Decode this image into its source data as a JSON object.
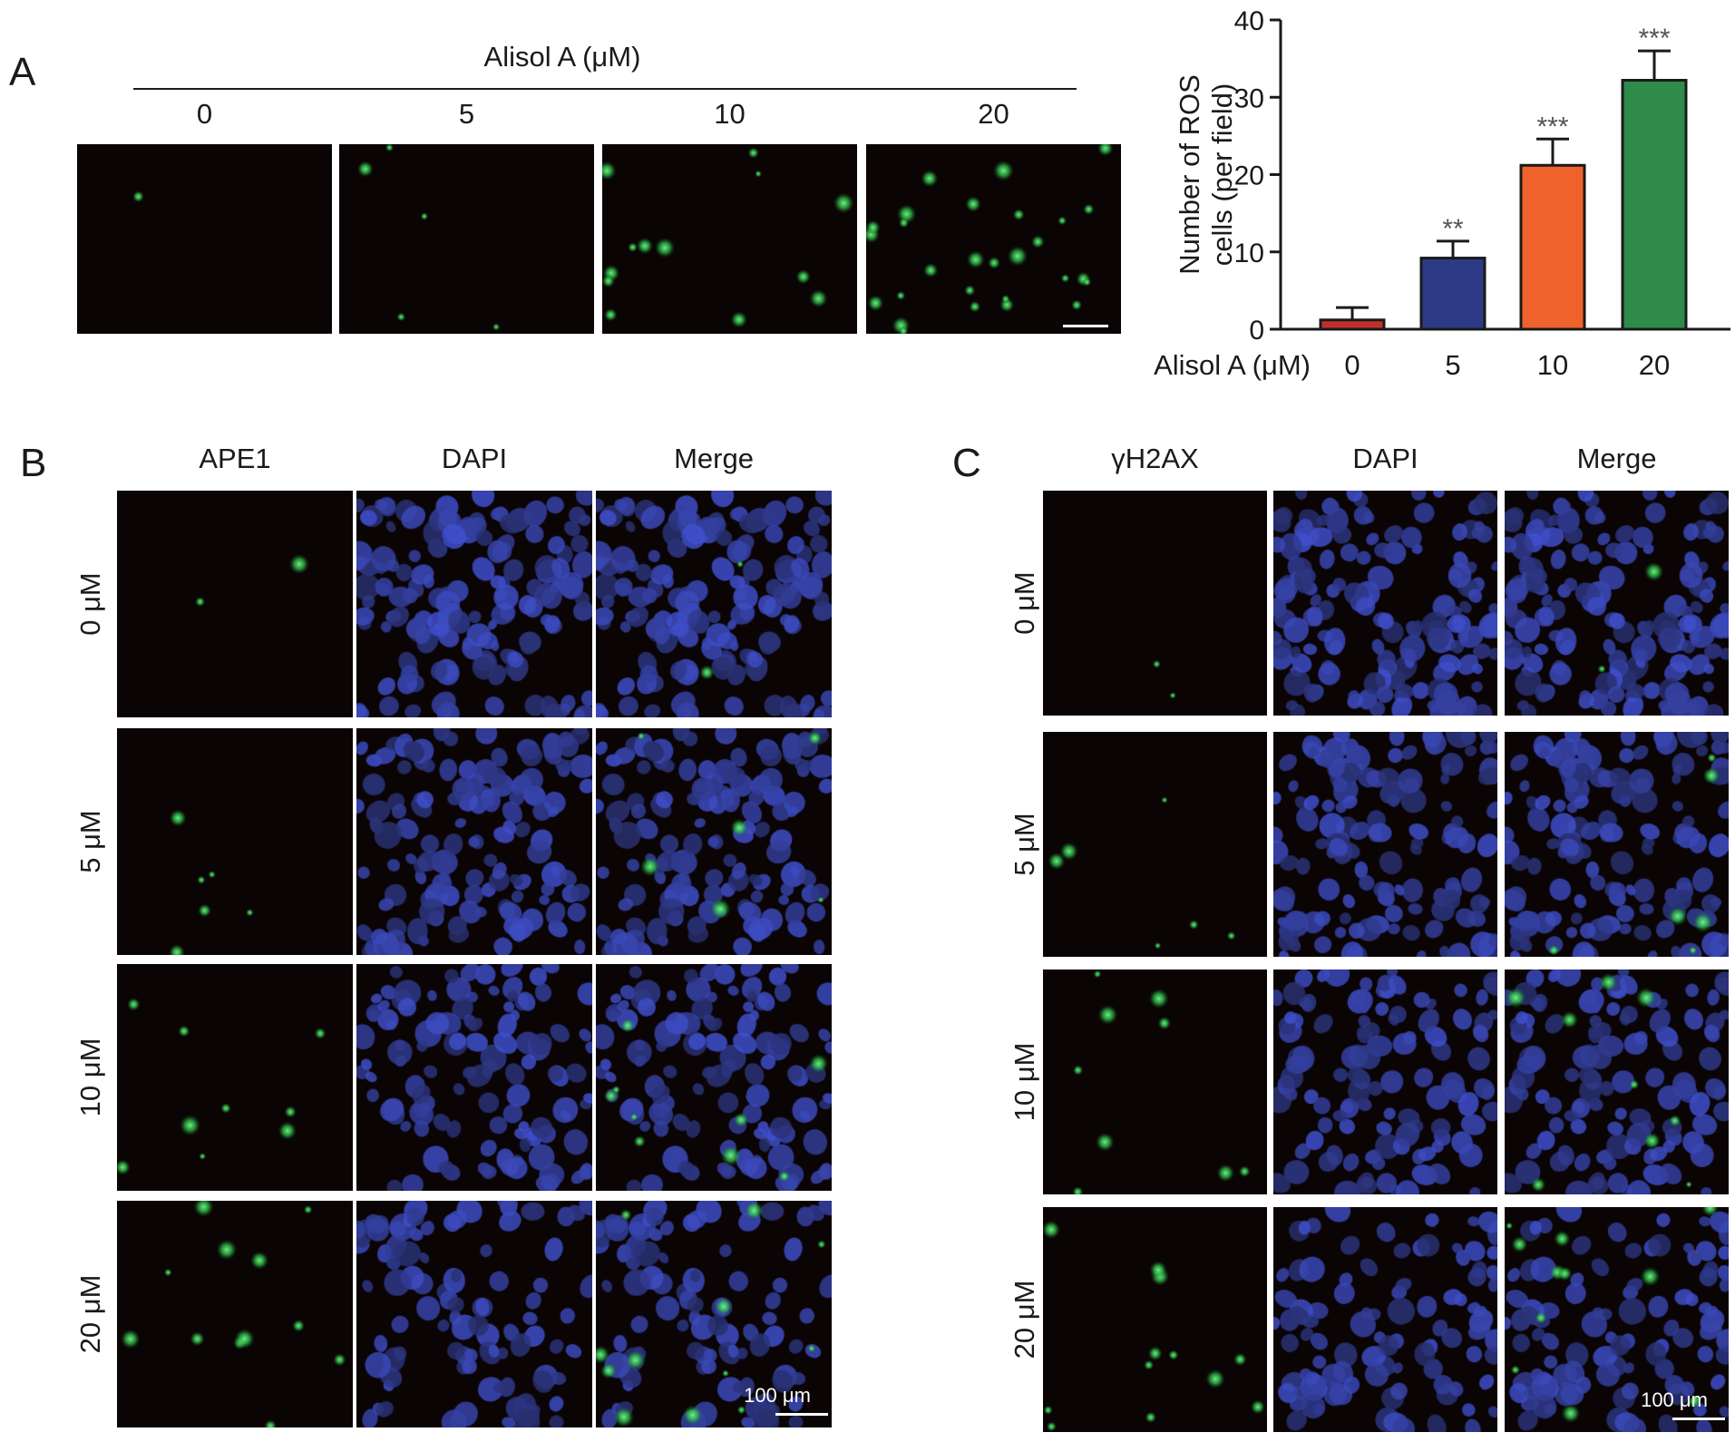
{
  "panel_a": {
    "letter": "A",
    "header": "Alisol A (μM)",
    "concentrations": [
      "0",
      "5",
      "10",
      "20"
    ],
    "green_dot_counts": [
      1,
      5,
      13,
      28
    ]
  },
  "panel_b": {
    "letter": "B",
    "columns": [
      "APE1",
      "DAPI",
      "Merge"
    ],
    "rows": [
      "0 μM",
      "5 μM",
      "10 μM",
      "20 μM"
    ],
    "scale_bar": "100 μm"
  },
  "panel_c": {
    "letter": "C",
    "columns": [
      "γH2AX",
      "DAPI",
      "Merge"
    ],
    "rows": [
      "0 μM",
      "5 μM",
      "10 μM",
      "20 μM"
    ],
    "scale_bar": "100 μm"
  },
  "colors": {
    "image_background": "#0b0404",
    "ros_green": "#4cd964",
    "dapi_blue": "#3a4fd0"
  },
  "chart_data": {
    "type": "bar",
    "categories": [
      "0",
      "5",
      "10",
      "20"
    ],
    "values": [
      1.2,
      9.2,
      21.2,
      32.2
    ],
    "errors": [
      1.6,
      2.2,
      3.4,
      3.8
    ],
    "significance": [
      "",
      "**",
      "***",
      "***"
    ],
    "bar_colors": [
      "#c0302b",
      "#2d3a86",
      "#f0622c",
      "#2e8b4a"
    ],
    "ylabel_line1": "Number of ROS",
    "ylabel_line2": "cells (per field)",
    "xlabel": "Alisol A (μM)",
    "yticks": [
      0,
      10,
      20,
      30,
      40
    ],
    "ylim": [
      0,
      40
    ]
  }
}
